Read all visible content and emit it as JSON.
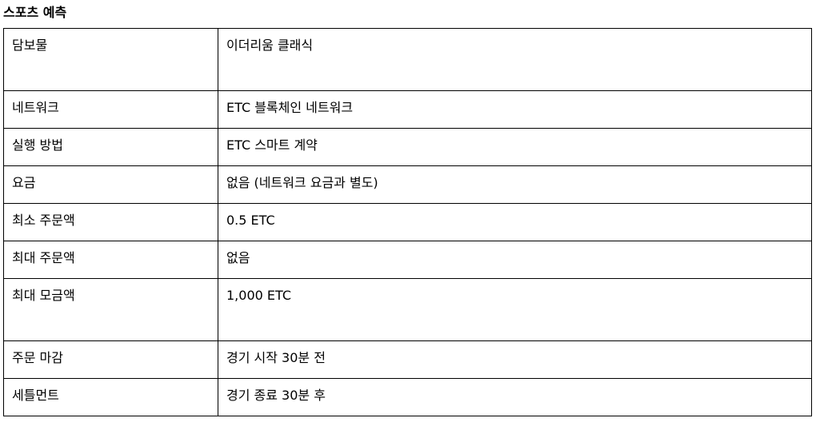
{
  "title": "스포츠 예측",
  "rows": [
    {
      "label": "담보물",
      "value": "이더리움 클래식"
    },
    {
      "label": "네트워크",
      "value": "ETC 블록체인 네트워크"
    },
    {
      "label": "실행 방법",
      "value": "ETC 스마트 계약"
    },
    {
      "label": "요금",
      "value": "없음 (네트워크 요금과 별도)"
    },
    {
      "label": "최소 주문액",
      "value": "0.5 ETC"
    },
    {
      "label": "최대 주문액",
      "value": "없음"
    },
    {
      "label": "최대 모금액",
      "value": "1,000 ETC"
    },
    {
      "label": "주문 마감",
      "value": "경기 시작 30분 전"
    },
    {
      "label": "세틀먼트",
      "value": "경기 종료 30분 후"
    }
  ]
}
